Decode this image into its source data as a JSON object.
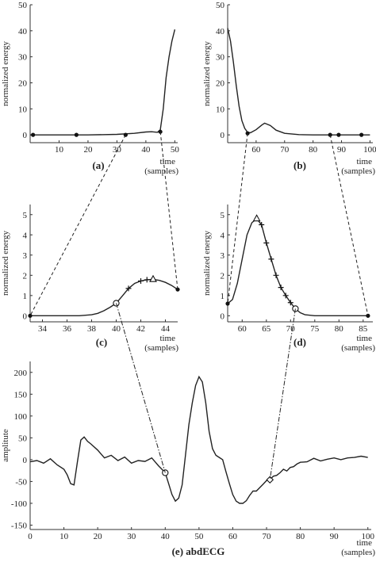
{
  "chart_data": [
    {
      "id": "a",
      "type": "line",
      "caption": "(a)",
      "ylabel": "normalized energy",
      "xlabel": [
        "time",
        "(samples)"
      ],
      "xlim": [
        0,
        51
      ],
      "ylim": [
        -3,
        50
      ],
      "xticks": [
        10,
        20,
        30,
        40,
        50
      ],
      "yticks": [
        0,
        10,
        20,
        30,
        40,
        50
      ],
      "x": [
        0,
        10,
        20,
        30,
        36,
        40,
        42,
        44,
        45,
        46,
        47,
        48,
        49,
        50
      ],
      "y": [
        0,
        0,
        0,
        0.2,
        0.6,
        1.1,
        1.2,
        1.0,
        2,
        10,
        22,
        30,
        36,
        40.5
      ],
      "markers": [
        {
          "x": 1,
          "y": 0
        },
        {
          "x": 16,
          "y": 0
        },
        {
          "x": 33,
          "y": 0
        },
        {
          "x": 45,
          "y": 1.2
        }
      ]
    },
    {
      "id": "b",
      "type": "line",
      "caption": "(b)",
      "ylabel": "normalized energy",
      "xlabel": [
        "time",
        "(samples)"
      ],
      "xlim": [
        50,
        101
      ],
      "ylim": [
        -3,
        50
      ],
      "xticks": [
        60,
        70,
        80,
        90,
        100
      ],
      "yticks": [
        0,
        10,
        20,
        30,
        40,
        50
      ],
      "x": [
        50,
        51,
        52,
        53,
        54,
        55,
        56,
        57,
        58,
        60,
        62,
        63,
        65,
        67,
        70,
        75,
        80,
        90,
        100
      ],
      "y": [
        41,
        36,
        28,
        19,
        11,
        5.5,
        2.5,
        1,
        0.8,
        2,
        3.8,
        4.5,
        3.6,
        1.8,
        0.6,
        0.1,
        0,
        0,
        0
      ],
      "markers": [
        {
          "x": 57,
          "y": 0.6
        },
        {
          "x": 86,
          "y": 0
        },
        {
          "x": 89,
          "y": 0
        },
        {
          "x": 97,
          "y": 0
        }
      ]
    },
    {
      "id": "c",
      "type": "line",
      "caption": "(c)",
      "ylabel": "normalized energy",
      "xlabel": [
        "time",
        "(samples)"
      ],
      "xlim": [
        33,
        45
      ],
      "ylim": [
        -0.3,
        5.5
      ],
      "xticks": [
        34,
        36,
        38,
        40,
        42,
        44
      ],
      "yticks": [
        0,
        1,
        2,
        3,
        4,
        5
      ],
      "x": [
        33,
        35,
        37,
        38,
        38.5,
        39,
        39.5,
        40,
        40.5,
        41,
        41.5,
        42,
        42.5,
        43,
        43.5,
        44,
        44.5,
        45
      ],
      "y": [
        0,
        0,
        0,
        0.05,
        0.12,
        0.25,
        0.42,
        0.62,
        0.98,
        1.35,
        1.6,
        1.72,
        1.78,
        1.8,
        1.75,
        1.65,
        1.5,
        1.3
      ],
      "markers": [
        {
          "x": 33,
          "y": 0,
          "m": "dot"
        },
        {
          "x": 40,
          "y": 0.62,
          "m": "circle"
        },
        {
          "x": 41,
          "y": 1.35,
          "m": "plus"
        },
        {
          "x": 42,
          "y": 1.72,
          "m": "plus"
        },
        {
          "x": 42.5,
          "y": 1.78,
          "m": "plus"
        },
        {
          "x": 43,
          "y": 1.8,
          "m": "triangle"
        },
        {
          "x": 45,
          "y": 1.3,
          "m": "dot"
        }
      ]
    },
    {
      "id": "d",
      "type": "line",
      "caption": "(d)",
      "ylabel": "normalized energy",
      "xlabel": [
        "time",
        "(samples)"
      ],
      "xlim": [
        57,
        87
      ],
      "ylim": [
        -0.3,
        5.5
      ],
      "xticks": [
        60,
        65,
        70,
        75,
        80,
        85
      ],
      "yticks": [
        0,
        1,
        2,
        3,
        4,
        5
      ],
      "x": [
        57,
        58,
        59,
        60,
        61,
        62,
        63,
        64,
        65,
        66,
        67,
        68,
        69,
        70,
        71,
        72,
        73,
        75,
        78,
        82,
        86
      ],
      "y": [
        0.6,
        0.8,
        1.6,
        2.8,
        4.0,
        4.6,
        4.8,
        4.5,
        3.6,
        2.8,
        2.0,
        1.4,
        1.0,
        0.65,
        0.35,
        0.15,
        0.05,
        0,
        0,
        0,
        0
      ],
      "markers": [
        {
          "x": 57,
          "y": 0.6,
          "m": "dot"
        },
        {
          "x": 63,
          "y": 4.8,
          "m": "triangle"
        },
        {
          "x": 64,
          "y": 4.5,
          "m": "plus"
        },
        {
          "x": 65,
          "y": 3.6,
          "m": "plus"
        },
        {
          "x": 66,
          "y": 2.8,
          "m": "plus"
        },
        {
          "x": 67,
          "y": 2.0,
          "m": "plus"
        },
        {
          "x": 68,
          "y": 1.4,
          "m": "plus"
        },
        {
          "x": 69,
          "y": 1.0,
          "m": "plus"
        },
        {
          "x": 70,
          "y": 0.65,
          "m": "plus"
        },
        {
          "x": 71,
          "y": 0.35,
          "m": "circle"
        },
        {
          "x": 86,
          "y": 0,
          "m": "dot"
        }
      ]
    },
    {
      "id": "e",
      "type": "line",
      "caption": "(e) abdECG",
      "ylabel": "amplitute",
      "xlabel": [
        "time",
        "(samples)"
      ],
      "xlim": [
        0,
        101
      ],
      "ylim": [
        -160,
        225
      ],
      "xticks": [
        0,
        10,
        20,
        30,
        40,
        50,
        60,
        70,
        80,
        90,
        100
      ],
      "yticks": [
        -150,
        -100,
        -50,
        0,
        50,
        100,
        150,
        200
      ],
      "x": [
        0,
        2,
        4,
        6,
        8,
        10,
        11,
        12,
        13,
        14,
        15,
        16,
        17,
        18,
        20,
        22,
        24,
        26,
        28,
        30,
        32,
        34,
        36,
        38,
        40,
        41,
        42,
        43,
        44,
        45,
        46,
        47,
        48,
        49,
        50,
        51,
        52,
        53,
        54,
        55,
        56,
        57,
        58,
        59,
        60,
        61,
        62,
        63,
        64,
        65,
        66,
        67,
        68,
        69,
        70,
        71,
        72,
        73,
        74,
        75,
        76,
        77,
        78,
        79,
        80,
        82,
        84,
        86,
        88,
        90,
        92,
        94,
        96,
        98,
        100
      ],
      "y": [
        -5,
        -2,
        -8,
        2,
        -12,
        -22,
        -35,
        -55,
        -58,
        -5,
        45,
        52,
        42,
        36,
        22,
        4,
        10,
        -2,
        6,
        -8,
        -2,
        -4,
        4,
        -14,
        -30,
        -55,
        -80,
        -95,
        -88,
        -58,
        10,
        80,
        130,
        170,
        190,
        178,
        130,
        65,
        25,
        10,
        5,
        0,
        -28,
        -55,
        -80,
        -95,
        -100,
        -100,
        -94,
        -82,
        -72,
        -72,
        -64,
        -56,
        -48,
        -46,
        -38,
        -36,
        -30,
        -22,
        -26,
        -18,
        -16,
        -10,
        -6,
        -5,
        3,
        -3,
        1,
        4,
        0,
        4,
        5,
        8,
        5
      ],
      "markers": [
        {
          "x": 40,
          "y": -30,
          "m": "circle"
        },
        {
          "x": 71,
          "y": -46,
          "m": "diamond"
        }
      ]
    }
  ],
  "connectors": [
    {
      "from": "a",
      "fx": 33,
      "fy": 0,
      "to": "c",
      "tx": 33,
      "ty": 0,
      "style": "dashed"
    },
    {
      "from": "a",
      "fx": 45,
      "fy": 1.2,
      "to": "c",
      "tx": 45,
      "ty": 1.3,
      "style": "dashed"
    },
    {
      "from": "b",
      "fx": 57,
      "fy": 0.6,
      "to": "d",
      "tx": 57,
      "ty": 0.6,
      "style": "dashed"
    },
    {
      "from": "b",
      "fx": 86,
      "fy": 0,
      "to": "d",
      "tx": 86,
      "ty": 0,
      "style": "dashed"
    },
    {
      "from": "c",
      "fx": 40,
      "fy": 0.62,
      "to": "e",
      "tx": 40,
      "ty": -30,
      "style": "dashdot"
    },
    {
      "from": "d",
      "fx": 71,
      "fy": 0.35,
      "to": "e",
      "tx": 71,
      "ty": -46,
      "style": "dashdot"
    }
  ]
}
